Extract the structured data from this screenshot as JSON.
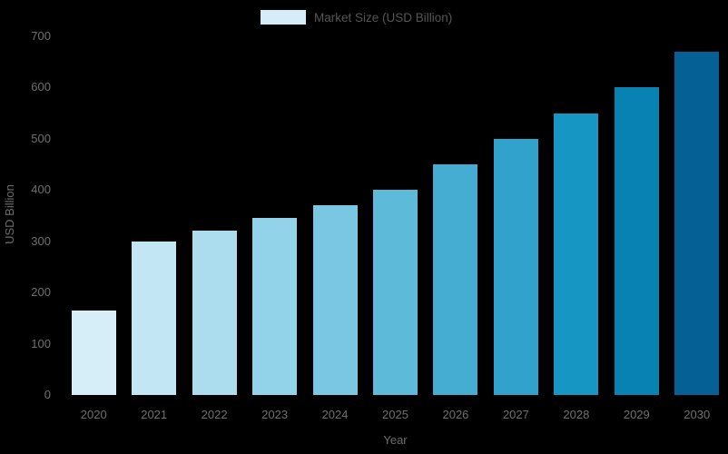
{
  "chart_data": {
    "type": "bar",
    "title": "",
    "legend": {
      "label": "Market Size (USD Billion)",
      "swatch_color": "#d4edf8",
      "position": "top-center"
    },
    "xlabel": "Year",
    "ylabel": "USD Billion",
    "categories": [
      "2020",
      "2021",
      "2022",
      "2023",
      "2024",
      "2025",
      "2026",
      "2027",
      "2028",
      "2029",
      "2030"
    ],
    "values": [
      165,
      300,
      320,
      345,
      370,
      400,
      450,
      500,
      550,
      600,
      670
    ],
    "bar_colors": [
      "#d6eef8",
      "#c2e6f3",
      "#abddef",
      "#93d3e9",
      "#79c7e2",
      "#5ebad9",
      "#45add2",
      "#30a2cb",
      "#1696c2",
      "#0882b3",
      "#046095"
    ],
    "yticks": [
      0,
      100,
      200,
      300,
      400,
      500,
      600,
      700
    ],
    "ylim": [
      0,
      700
    ],
    "grid": false,
    "background_color": "#000000",
    "tick_text_color": "#707070",
    "axis_title_color": "#6e6e6e",
    "legend_text_color": "#565656"
  }
}
